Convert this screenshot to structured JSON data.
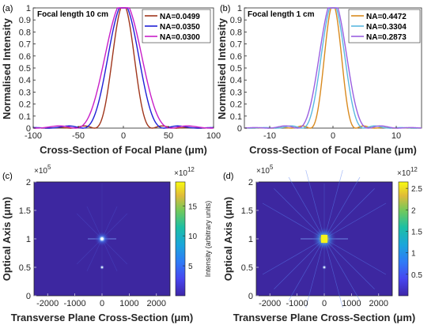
{
  "chart_data": [
    {
      "panel": "(a)",
      "type": "line",
      "annotation": "Focal length 10 cm",
      "xlabel": "Cross-Section of Focal Plane (μm)",
      "ylabel": "Normalised Intensity",
      "xlim": [
        -100,
        100
      ],
      "ylim": [
        0,
        1
      ],
      "xticks": [
        "-100",
        "-50",
        "0",
        "50",
        "100"
      ],
      "yticks": [
        "0",
        "0.1",
        "0.2",
        "0.3",
        "0.4",
        "0.5",
        "0.6",
        "0.7",
        "0.8",
        "0.9",
        "1"
      ],
      "grid": false,
      "legend_position": "top-right",
      "series": [
        {
          "name": "NA=0.0499",
          "color": "#a0361c",
          "first_zero": 32,
          "sidelobe": 0.02
        },
        {
          "name": "NA=0.0350",
          "color": "#1f1fd6",
          "first_zero": 45,
          "sidelobe": 0.025
        },
        {
          "name": "NA=0.0300",
          "color": "#c81fc8",
          "first_zero": 53,
          "sidelobe": 0.04
        }
      ]
    },
    {
      "panel": "(b)",
      "type": "line",
      "annotation": "Focal length 1 cm",
      "xlabel": "Cross-Section of Focal Plane (μm)",
      "ylabel": "Normalised Intensity",
      "xlim": [
        -14,
        14
      ],
      "ylim": [
        0,
        1
      ],
      "xticks": [
        "-10",
        "0",
        "10"
      ],
      "yticks": [
        "0",
        "0.1",
        "0.2",
        "0.3",
        "0.4",
        "0.5",
        "0.6",
        "0.7",
        "0.8",
        "0.9",
        "1"
      ],
      "grid": false,
      "legend_position": "top-right",
      "series": [
        {
          "name": "NA=0.4472",
          "color": "#d98a1f",
          "first_zero": 3.6,
          "sidelobe": 0.02
        },
        {
          "name": "NA=0.3304",
          "color": "#5ab8e0",
          "first_zero": 4.9,
          "sidelobe": 0.03
        },
        {
          "name": "NA=0.2873",
          "color": "#9a5fe0",
          "first_zero": 5.6,
          "sidelobe": 0.05
        }
      ]
    },
    {
      "panel": "(c)",
      "type": "heatmap",
      "xlabel": "Transverse Plane Cross-Section (μm)",
      "ylabel": "Optical Axis (μm)",
      "xlim": [
        -2500,
        2500
      ],
      "ylim": [
        0,
        200000
      ],
      "xticks": [
        "-2000",
        "-1000",
        "0",
        "1000",
        "2000"
      ],
      "yticks": [
        "0",
        "0.5",
        "1",
        "1.5",
        "2"
      ],
      "y_multiplier": "×10",
      "y_multiplier_exp": "5",
      "colorbar": {
        "multiplier": "×10",
        "multiplier_exp": "12",
        "ticks": [
          "5",
          "10",
          "15"
        ],
        "tick_values": [
          5,
          10,
          15
        ],
        "range": [
          0,
          19
        ],
        "label": "Intensity (arbitrary units)"
      },
      "focus": {
        "x": 0,
        "y": 100000
      },
      "secondary_spot": {
        "x": 0,
        "y": 50000
      }
    },
    {
      "panel": "(d)",
      "type": "heatmap",
      "xlabel": "Transverse Plane Cross-Section (μm)",
      "ylabel": "Optical Axis (μm)",
      "xlim": [
        -2500,
        2500
      ],
      "ylim": [
        0,
        200000
      ],
      "xticks": [
        "-2000",
        "-1000",
        "0",
        "1000",
        "2000"
      ],
      "yticks": [
        "0",
        "0.5",
        "1",
        "1.5",
        "2"
      ],
      "y_multiplier": "×10",
      "y_multiplier_exp": "5",
      "colorbar": {
        "multiplier": "×10",
        "multiplier_exp": "12",
        "ticks": [
          "0.5",
          "1",
          "1.5",
          "2",
          "2.5"
        ],
        "tick_values": [
          0.5,
          1,
          1.5,
          2,
          2.5
        ],
        "range": [
          0,
          2.65
        ],
        "label": ""
      },
      "focus": {
        "x": 0,
        "y": 100000
      },
      "secondary_spot": {
        "x": 0,
        "y": 50000
      }
    }
  ],
  "colors": {
    "heatmap_background": "#3d27a0",
    "axis": "#262626"
  }
}
